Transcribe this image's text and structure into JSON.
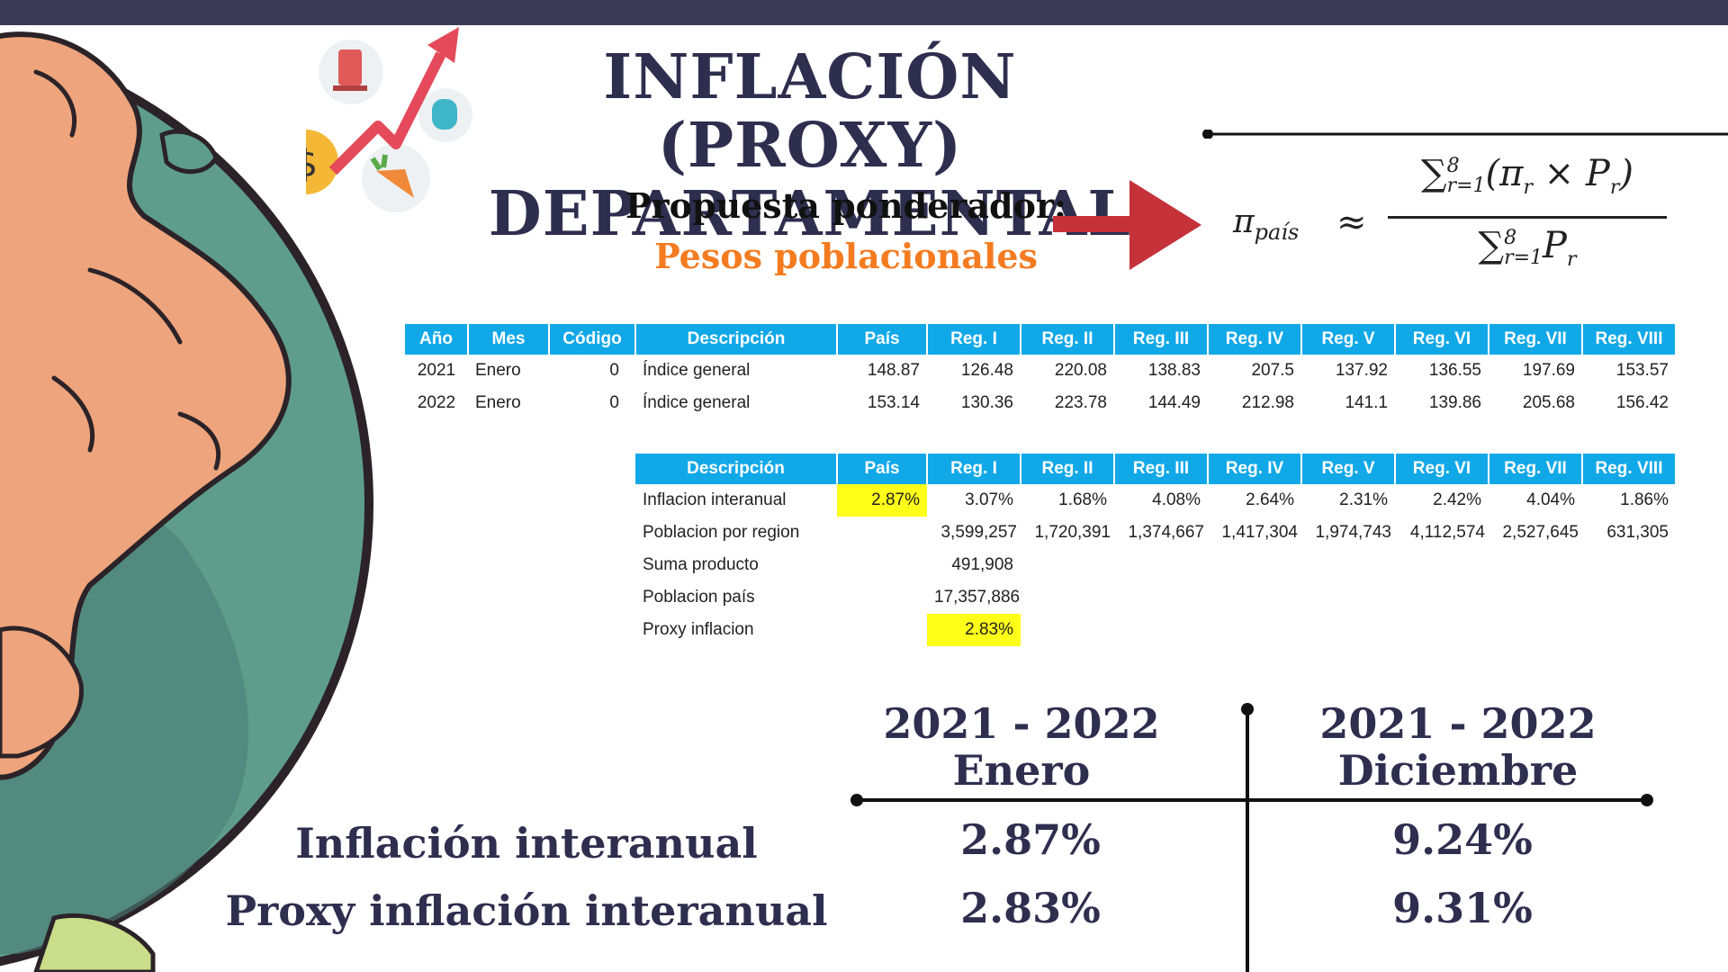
{
  "title_line1": "INFLACIÓN (PROXY)",
  "title_line2": "DEPARTAMENTAL",
  "subtitle": "Propuesta ponderador:",
  "subtitle_accent": "Pesos poblacionales",
  "formula": {
    "lhs": "π",
    "lhs_sub": "país",
    "approx": "≈",
    "num_sum_sub": "r=1",
    "num_sum_sup": "8",
    "num_body": "(π",
    "num_body_sub": "r",
    "num_times": " × P",
    "num_times_sub": "r",
    "num_close": ")",
    "den_sum_sub": "r=1",
    "den_sum_sup": "8",
    "den_body": "P",
    "den_body_sub": "r"
  },
  "table1": {
    "headers": [
      "Año",
      "Mes",
      "Código",
      "Descripción",
      "País",
      "Reg. I",
      "Reg. II",
      "Reg. III",
      "Reg. IV",
      "Reg. V",
      "Reg. VI",
      "Reg. VII",
      "Reg. VIII"
    ],
    "rows": [
      [
        "2021",
        "Enero",
        "0",
        "Índice general",
        "148.87",
        "126.48",
        "220.08",
        "138.83",
        "207.5",
        "137.92",
        "136.55",
        "197.69",
        "153.57"
      ],
      [
        "2022",
        "Enero",
        "0",
        "Índice general",
        "153.14",
        "130.36",
        "223.78",
        "144.49",
        "212.98",
        "141.1",
        "139.86",
        "205.68",
        "156.42"
      ]
    ]
  },
  "table2": {
    "headers": [
      "Descripción",
      "País",
      "Reg. I",
      "Reg. II",
      "Reg. III",
      "Reg. IV",
      "Reg. V",
      "Reg. VI",
      "Reg. VII",
      "Reg. VIII"
    ],
    "rows": [
      [
        "Inflacion interanual",
        "2.87%",
        "3.07%",
        "1.68%",
        "4.08%",
        "2.64%",
        "2.31%",
        "2.42%",
        "4.04%",
        "1.86%"
      ],
      [
        "Poblacion por region",
        "",
        "3,599,257",
        "1,720,391",
        "1,374,667",
        "1,417,304",
        "1,974,743",
        "4,112,574",
        "2,527,645",
        "631,305"
      ],
      [
        "Suma producto",
        "",
        "491,908",
        "",
        "",
        "",
        "",
        "",
        "",
        ""
      ],
      [
        "Poblacion país",
        "",
        "17,357,886",
        "",
        "",
        "",
        "",
        "",
        "",
        ""
      ],
      [
        "Proxy inflacion",
        "",
        "2.83%",
        "",
        "",
        "",
        "",
        "",
        "",
        ""
      ]
    ]
  },
  "comparison": {
    "col1_line1": "2021 - 2022",
    "col1_line2": "Enero",
    "col2_line1": "2021 - 2022",
    "col2_line2": "Diciembre",
    "row1_label": "Inflación interanual",
    "row2_label": "Proxy inflación interanual",
    "col1_row1": "2.87%",
    "col1_row2": "2.83%",
    "col2_row1": "9.24%",
    "col2_row2": "9.31%"
  },
  "colors": {
    "top_bar": "#3b3a56",
    "title": "#2e2e4f",
    "accent_orange": "#f47b20",
    "table_header": "#11a8e8",
    "highlight": "#ffff1a",
    "arrow_red": "#c5323a"
  }
}
